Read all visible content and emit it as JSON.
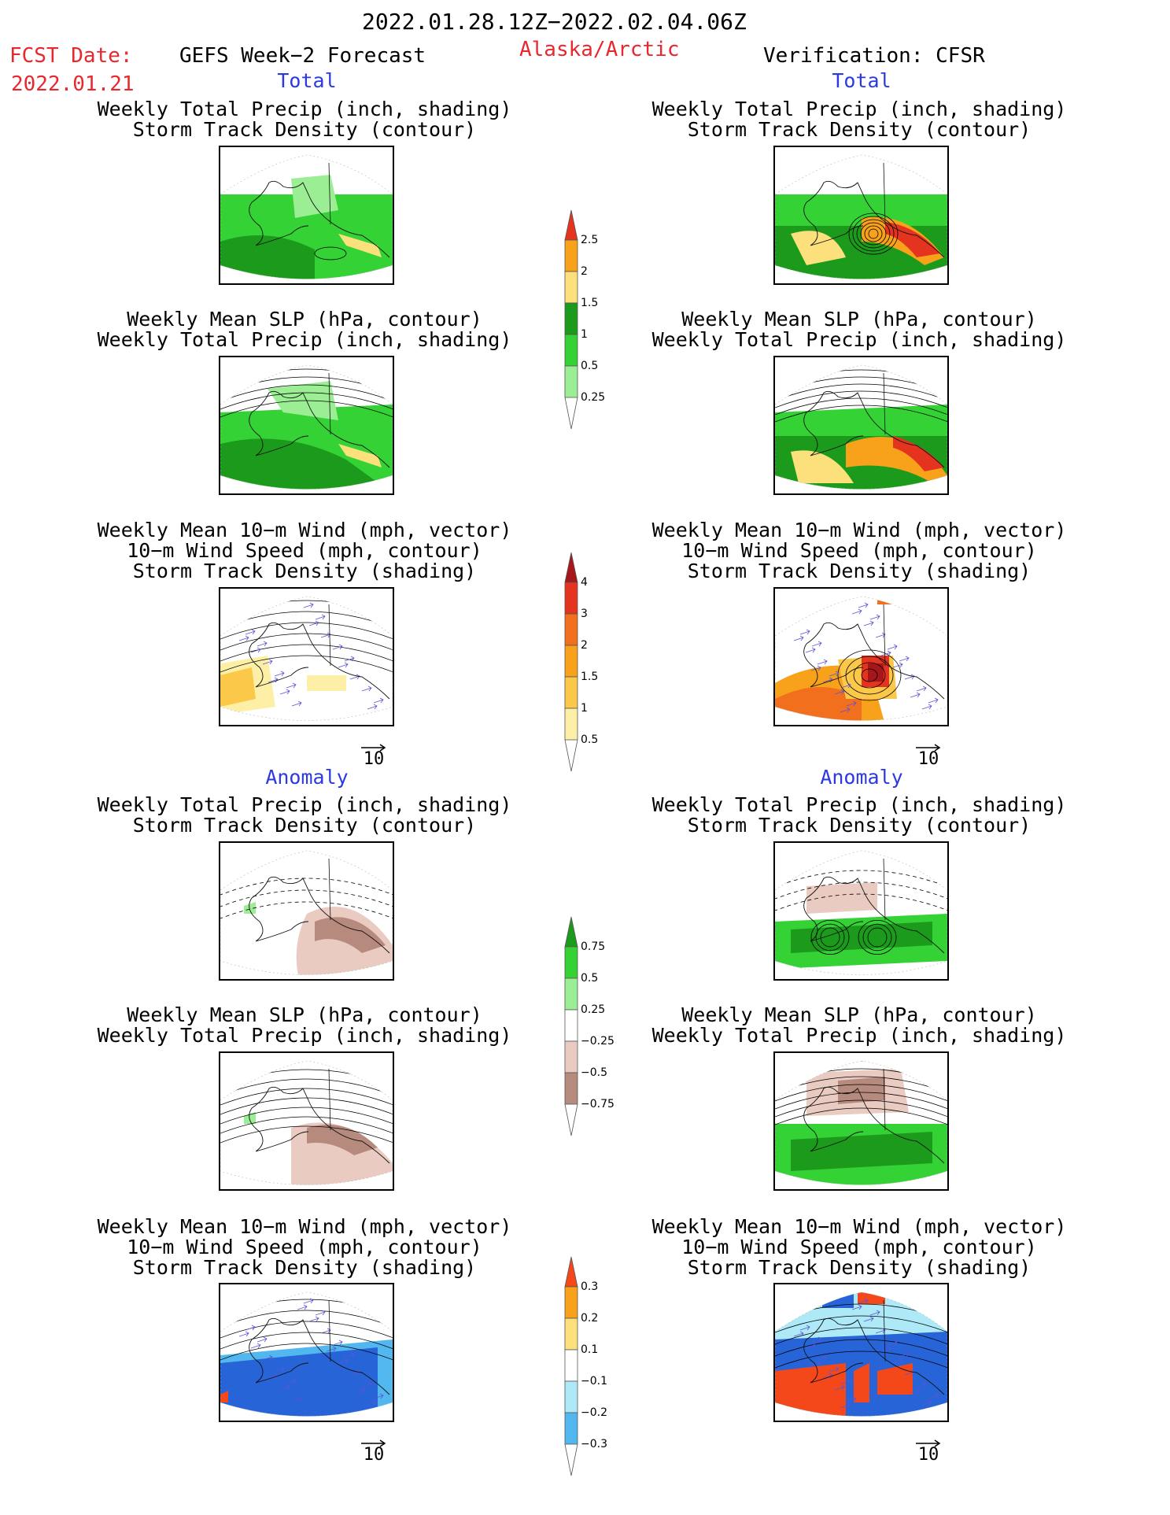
{
  "header": {
    "period": "2022.01.28.12Z−2022.02.04.06Z",
    "fcst_label": "FCST Date:",
    "fcst_date": "2022.01.21",
    "model": "GEFS Week−2 Forecast",
    "region": "Alaska/Arctic",
    "verification": "Verification: CFSR"
  },
  "sections": {
    "total_left": "Total",
    "total_right": "Total",
    "anom_left": "Anomaly",
    "anom_right": "Anomaly"
  },
  "titles": {
    "precip_track": [
      "Weekly Total Precip (inch, shading)",
      "Storm Track Density (contour)"
    ],
    "slp_precip": [
      "Weekly Mean SLP (hPa, contour)",
      "Weekly Total Precip (inch, shading)"
    ],
    "wind_track": [
      "Weekly Mean 10−m Wind (mph, vector)",
      "10−m Wind Speed (mph, contour)",
      "Storm Track Density (shading)"
    ]
  },
  "vector_ref": "10",
  "colorbars": {
    "precip_total": {
      "labels": [
        "2.5",
        "2",
        "1.5",
        "1",
        "0.5",
        "0.25"
      ],
      "colors": [
        "#e4331f",
        "#f7a21a",
        "#fbe07c",
        "#1c9a1c",
        "#35d235",
        "#9bee94",
        "#ffffff"
      ]
    },
    "track_total": {
      "labels": [
        "4",
        "3",
        "2",
        "1.5",
        "1",
        "0.5"
      ],
      "colors": [
        "#a5171b",
        "#e4331f",
        "#f26f1d",
        "#f7a21a",
        "#fbc84a",
        "#fdf0a6",
        "#ffffff"
      ]
    },
    "precip_anom": {
      "labels": [
        "0.75",
        "0.5",
        "0.25",
        "−0.25",
        "−0.5",
        "−0.75"
      ],
      "colors": [
        "#1c9a1c",
        "#35d235",
        "#9bee94",
        "#ffffff",
        "#e9cbc2",
        "#b68b7d",
        "#7c5244"
      ]
    },
    "track_anom": {
      "labels": [
        "0.3",
        "0.2",
        "0.1",
        "−0.1",
        "−0.2",
        "−0.3"
      ],
      "colors": [
        "#f4481b",
        "#f7a21a",
        "#fbe07c",
        "#ffffff",
        "#aee9f7",
        "#52b7ee",
        "#2664d8"
      ]
    }
  },
  "panels": [
    {
      "id": "left-total-precip-track",
      "col": "GEFS",
      "field": "total",
      "shading": "precip"
    },
    {
      "id": "right-total-precip-track",
      "col": "CFSR",
      "field": "total",
      "shading": "precip"
    },
    {
      "id": "left-total-slp-precip",
      "col": "GEFS",
      "field": "total",
      "shading": "precip"
    },
    {
      "id": "right-total-slp-precip",
      "col": "CFSR",
      "field": "total",
      "shading": "precip"
    },
    {
      "id": "left-total-wind-track",
      "col": "GEFS",
      "field": "total",
      "shading": "track"
    },
    {
      "id": "right-total-wind-track",
      "col": "CFSR",
      "field": "total",
      "shading": "track"
    },
    {
      "id": "left-anom-precip-track",
      "col": "GEFS",
      "field": "anomaly",
      "shading": "precip"
    },
    {
      "id": "right-anom-precip-track",
      "col": "CFSR",
      "field": "anomaly",
      "shading": "precip"
    },
    {
      "id": "left-anom-slp-precip",
      "col": "GEFS",
      "field": "anomaly",
      "shading": "precip"
    },
    {
      "id": "right-anom-slp-precip",
      "col": "CFSR",
      "field": "anomaly",
      "shading": "precip"
    },
    {
      "id": "left-anom-wind-track",
      "col": "GEFS",
      "field": "anomaly",
      "shading": "track"
    },
    {
      "id": "right-anom-wind-track",
      "col": "CFSR",
      "field": "anomaly",
      "shading": "track"
    }
  ]
}
